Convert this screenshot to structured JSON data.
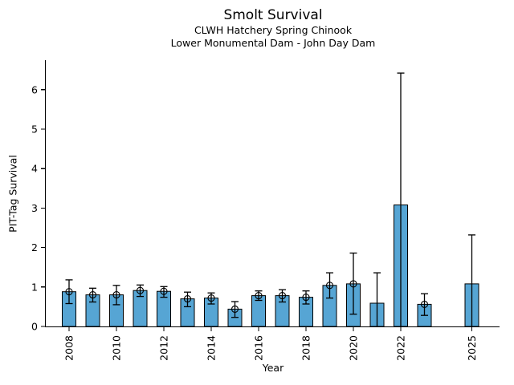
{
  "chart_data": {
    "type": "bar",
    "title": "Smolt Survival",
    "subtitle1": "CLWH Hatchery Spring Chinook",
    "subtitle2": "Lower Monumental Dam - John Day Dam",
    "xlabel": "Year",
    "ylabel": "PIT-Tag Survival",
    "ylim": [
      0,
      6.75
    ],
    "xlim": [
      2007,
      2026
    ],
    "yticks": [
      0,
      1,
      2,
      3,
      4,
      5,
      6
    ],
    "xticks": [
      2008,
      2010,
      2012,
      2014,
      2016,
      2018,
      2020,
      2022,
      2025
    ],
    "grid": false,
    "legend": "none",
    "bar_color": "#56a5d4",
    "bar_edge_color": "#000000",
    "errorbar_color": "#000000",
    "points": [
      {
        "year": 2008,
        "value": 0.88,
        "lo": 0.58,
        "hi": 1.18,
        "marker": true
      },
      {
        "year": 2009,
        "value": 0.8,
        "lo": 0.62,
        "hi": 0.97,
        "marker": true
      },
      {
        "year": 2010,
        "value": 0.8,
        "lo": 0.55,
        "hi": 1.04,
        "marker": true
      },
      {
        "year": 2011,
        "value": 0.91,
        "lo": 0.76,
        "hi": 1.05,
        "marker": true
      },
      {
        "year": 2012,
        "value": 0.89,
        "lo": 0.74,
        "hi": 1.01,
        "marker": true
      },
      {
        "year": 2013,
        "value": 0.7,
        "lo": 0.5,
        "hi": 0.87,
        "marker": true
      },
      {
        "year": 2014,
        "value": 0.72,
        "lo": 0.57,
        "hi": 0.85,
        "marker": true
      },
      {
        "year": 2015,
        "value": 0.44,
        "lo": 0.23,
        "hi": 0.63,
        "marker": true
      },
      {
        "year": 2016,
        "value": 0.78,
        "lo": 0.66,
        "hi": 0.9,
        "marker": true
      },
      {
        "year": 2017,
        "value": 0.78,
        "lo": 0.62,
        "hi": 0.93,
        "marker": true
      },
      {
        "year": 2018,
        "value": 0.74,
        "lo": 0.57,
        "hi": 0.9,
        "marker": true
      },
      {
        "year": 2019,
        "value": 1.04,
        "lo": 0.72,
        "hi": 1.36,
        "marker": true
      },
      {
        "year": 2020,
        "value": 1.08,
        "lo": 0.31,
        "hi": 1.86,
        "marker": true
      },
      {
        "year": 2021,
        "value": 0.59,
        "lo": 0.0,
        "hi": 1.36,
        "marker": false
      },
      {
        "year": 2022,
        "value": 3.08,
        "lo": 0.0,
        "hi": 6.42,
        "marker": false
      },
      {
        "year": 2023,
        "value": 0.56,
        "lo": 0.28,
        "hi": 0.83,
        "marker": true
      },
      {
        "year": 2025,
        "value": 1.08,
        "lo": 0.0,
        "hi": 2.32,
        "marker": false
      }
    ]
  }
}
